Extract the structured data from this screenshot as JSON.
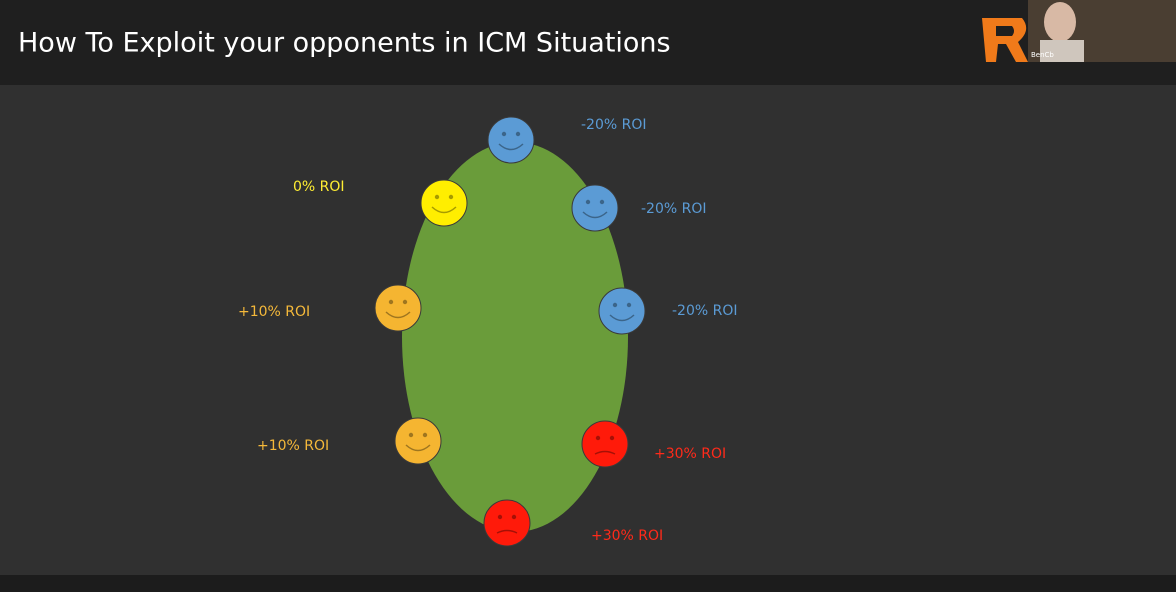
{
  "header": {
    "title": "How To Exploit your opponents in ICM Situations"
  },
  "webcam": {
    "name": "BenCb"
  },
  "players": [
    {
      "label": "-20% ROI"
    },
    {
      "label": "-20% ROI"
    },
    {
      "label": "-20% ROI"
    },
    {
      "label": "+30% ROI"
    },
    {
      "label": "+30% ROI"
    },
    {
      "label": "+10% ROI"
    },
    {
      "label": "+10% ROI"
    },
    {
      "label": "0% ROI"
    }
  ]
}
